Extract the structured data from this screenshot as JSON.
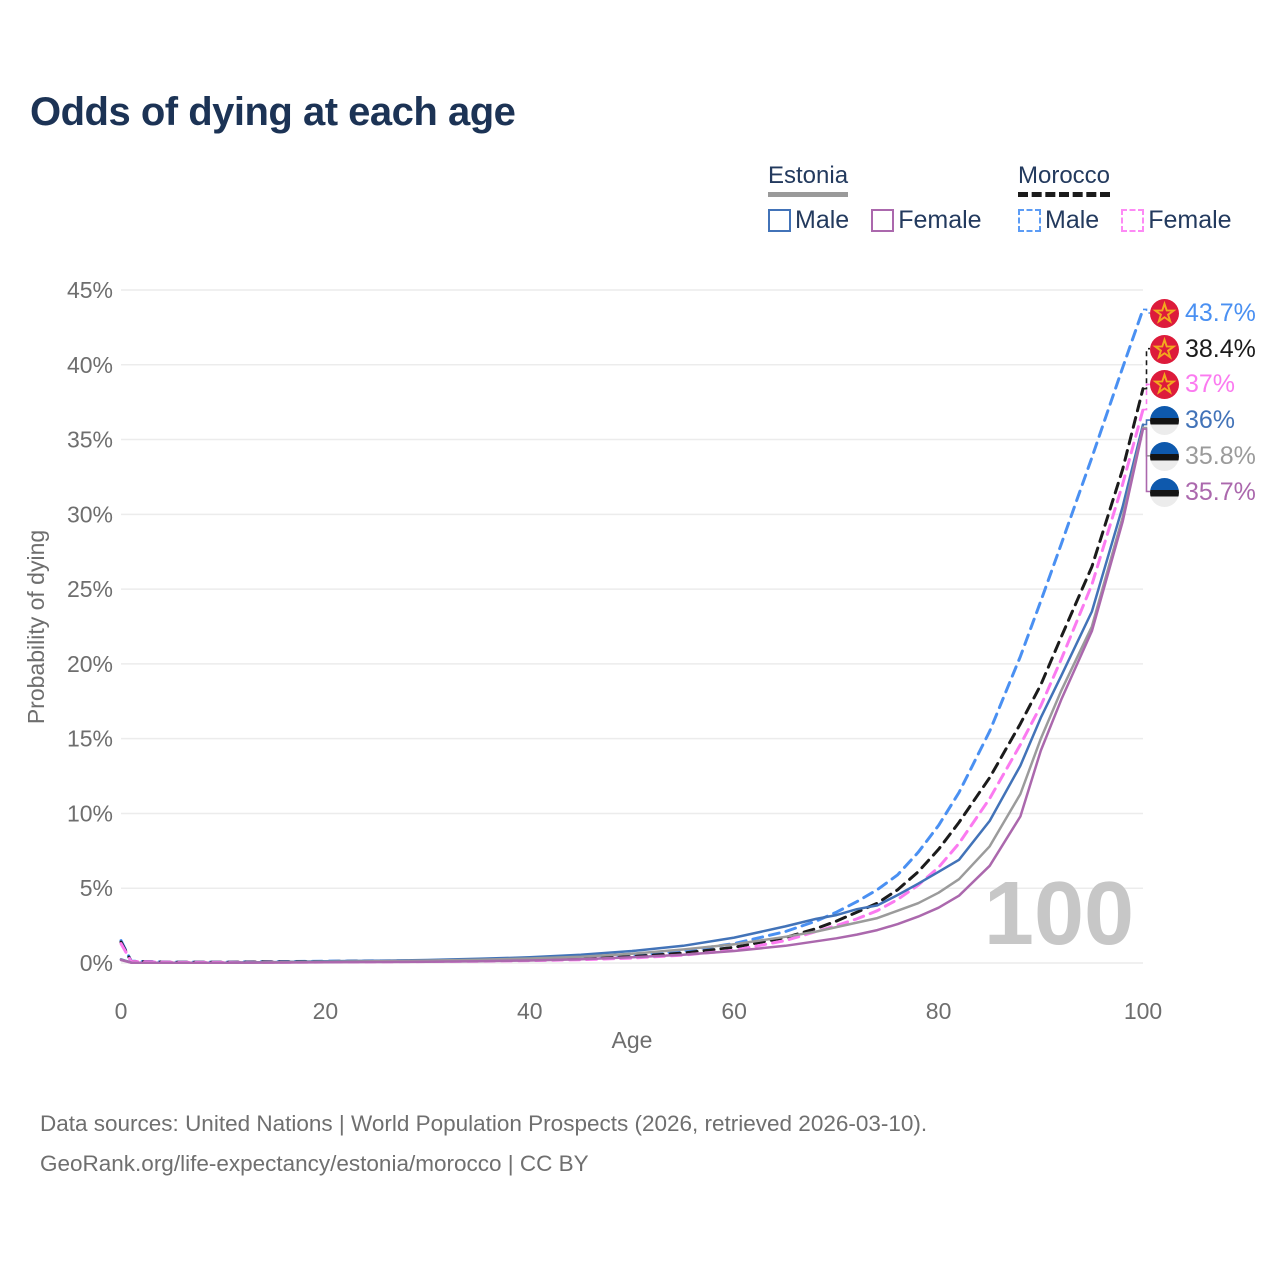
{
  "title": "Odds of dying at each age",
  "legend": {
    "groups": [
      {
        "name": "Estonia",
        "underline_color": "#9a9a9a",
        "underline_style": "solid",
        "items": [
          {
            "label": "Male",
            "color": "#4273b8",
            "dashed": false
          },
          {
            "label": "Female",
            "color": "#ab68ad",
            "dashed": false
          }
        ]
      },
      {
        "name": "Morocco",
        "underline_color": "#1b1b1b",
        "underline_style": "dashed",
        "items": [
          {
            "label": "Male",
            "color": "#5c9cf5",
            "dashed": true
          },
          {
            "label": "Female",
            "color": "#fd8af5",
            "dashed": true
          }
        ]
      }
    ]
  },
  "chart_data": {
    "type": "line",
    "title": "Odds of dying at each age",
    "xlabel": "Age",
    "ylabel": "Probability of dying",
    "xlim": [
      0,
      100
    ],
    "ylim": [
      0,
      45
    ],
    "x_ticks": [
      "0",
      "20",
      "40",
      "60",
      "80",
      "100"
    ],
    "y_ticks": [
      "0%",
      "5%",
      "10%",
      "15%",
      "20%",
      "25%",
      "30%",
      "35%",
      "40%",
      "45%"
    ],
    "grid": "horizontal",
    "hover_age_watermark": "100",
    "unit": "percent",
    "x": [
      0,
      1,
      5,
      10,
      15,
      20,
      25,
      30,
      35,
      40,
      45,
      50,
      55,
      60,
      65,
      68,
      70,
      72,
      74,
      76,
      78,
      80,
      82,
      85,
      88,
      90,
      92,
      95,
      98,
      100
    ],
    "series": [
      {
        "name": "Morocco male",
        "country": "Morocco",
        "sex": "Male",
        "color": "#4a90f2",
        "dashed": true,
        "end_label": "43.7%",
        "flag": "morocco",
        "values": [
          1.5,
          0.12,
          0.06,
          0.06,
          0.09,
          0.12,
          0.14,
          0.16,
          0.19,
          0.24,
          0.33,
          0.5,
          0.8,
          1.3,
          2.1,
          2.8,
          3.4,
          4.1,
          4.9,
          5.9,
          7.4,
          9.2,
          11.4,
          15.5,
          20.5,
          24.2,
          28.0,
          33.8,
          39.8,
          43.7
        ]
      },
      {
        "name": "Morocco both sexes",
        "country": "Morocco",
        "sex": "Both",
        "color": "#1b1b1b",
        "dashed": true,
        "end_label": "38.4%",
        "flag": "morocco",
        "values": [
          1.4,
          0.11,
          0.05,
          0.05,
          0.08,
          0.1,
          0.12,
          0.14,
          0.17,
          0.21,
          0.29,
          0.43,
          0.66,
          1.05,
          1.7,
          2.3,
          2.8,
          3.4,
          4.0,
          4.9,
          6.1,
          7.6,
          9.4,
          12.4,
          16.0,
          18.6,
          21.8,
          26.5,
          33.0,
          38.4
        ]
      },
      {
        "name": "Morocco female",
        "country": "Morocco",
        "sex": "Female",
        "color": "#fb7af0",
        "dashed": true,
        "end_label": "37%",
        "flag": "morocco",
        "values": [
          1.3,
          0.1,
          0.05,
          0.04,
          0.05,
          0.07,
          0.08,
          0.1,
          0.12,
          0.16,
          0.22,
          0.33,
          0.53,
          0.85,
          1.5,
          2.1,
          2.5,
          2.95,
          3.5,
          4.25,
          5.2,
          6.4,
          8.0,
          11.0,
          14.6,
          17.2,
          20.3,
          25.3,
          32.0,
          37.0
        ]
      },
      {
        "name": "Estonia male",
        "country": "Estonia",
        "sex": "Male",
        "color": "#4273b8",
        "dashed": false,
        "end_label": "36%",
        "flag": "estonia",
        "values": [
          0.25,
          0.03,
          0.02,
          0.02,
          0.06,
          0.12,
          0.15,
          0.2,
          0.28,
          0.38,
          0.55,
          0.8,
          1.15,
          1.7,
          2.45,
          2.95,
          3.2,
          3.6,
          3.85,
          4.55,
          5.3,
          6.1,
          6.9,
          9.5,
          13.2,
          16.4,
          19.2,
          23.5,
          30.5,
          36.0
        ]
      },
      {
        "name": "Estonia both sexes",
        "country": "Estonia",
        "sex": "Both",
        "color": "#9b9b9b",
        "dashed": false,
        "end_label": "35.8%",
        "flag": "estonia",
        "values": [
          0.22,
          0.025,
          0.02,
          0.02,
          0.05,
          0.09,
          0.12,
          0.16,
          0.22,
          0.3,
          0.42,
          0.62,
          0.9,
          1.25,
          1.75,
          2.1,
          2.4,
          2.7,
          3.0,
          3.5,
          4.0,
          4.7,
          5.6,
          7.8,
          11.3,
          15.0,
          18.2,
          22.5,
          29.8,
          35.8
        ]
      },
      {
        "name": "Estonia female",
        "country": "Estonia",
        "sex": "Female",
        "color": "#ab68ad",
        "dashed": false,
        "end_label": "35.7%",
        "flag": "estonia",
        "values": [
          0.2,
          0.02,
          0.015,
          0.015,
          0.03,
          0.05,
          0.07,
          0.09,
          0.12,
          0.17,
          0.25,
          0.38,
          0.55,
          0.8,
          1.15,
          1.45,
          1.65,
          1.9,
          2.2,
          2.6,
          3.1,
          3.7,
          4.5,
          6.5,
          9.8,
          14.2,
          17.6,
          22.2,
          29.5,
          35.7
        ]
      }
    ]
  },
  "footer": {
    "line1": "Data sources: United Nations | World Population Prospects (2026, retrieved 2026-03-10).",
    "line2": "GeoRank.org/life-expectancy/estonia/morocco | CC BY"
  }
}
